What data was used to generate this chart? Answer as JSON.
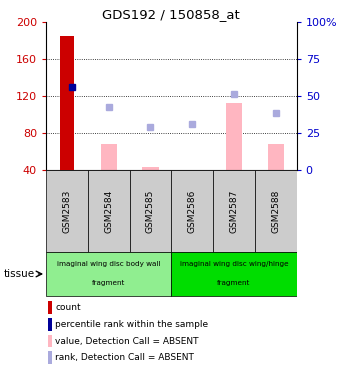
{
  "title": "GDS192 / 150858_at",
  "samples": [
    "GSM2583",
    "GSM2584",
    "GSM2585",
    "GSM2586",
    "GSM2587",
    "GSM2588"
  ],
  "count_values": [
    185,
    null,
    null,
    null,
    null,
    null
  ],
  "percentile_values": [
    130,
    null,
    null,
    null,
    null,
    null
  ],
  "absent_value_bars": [
    null,
    68,
    43,
    40,
    113,
    68
  ],
  "absent_rank_dots": [
    null,
    108,
    87,
    90,
    122,
    102
  ],
  "ylim_left": [
    40,
    200
  ],
  "ylim_right": [
    0,
    100
  ],
  "yticks_left": [
    40,
    80,
    120,
    160,
    200
  ],
  "yticks_right": [
    0,
    25,
    50,
    75,
    100
  ],
  "right_tick_labels": [
    "0",
    "25",
    "50",
    "75",
    "100%"
  ],
  "tissue_groups": [
    {
      "label1": "imaginal wing disc body wall",
      "label2": "fragment",
      "samples": [
        0,
        1,
        2
      ],
      "color": "#90EE90"
    },
    {
      "label1": "imaginal wing disc wing/hinge",
      "label2": "fragment",
      "samples": [
        3,
        4,
        5
      ],
      "color": "#00DD00"
    }
  ],
  "bar_color_count": "#CC0000",
  "bar_color_absent_value": "#FFB6C1",
  "dot_color_percentile": "#000099",
  "dot_color_absent_rank": "#AAAADD",
  "bg_color": "#FFFFFF",
  "grid_color": "#000000",
  "tick_color_left": "#CC0000",
  "tick_color_right": "#0000CC",
  "xtick_bg": "#CCCCCC",
  "legend_items": [
    {
      "color": "#CC0000",
      "label": "count"
    },
    {
      "color": "#000099",
      "label": "percentile rank within the sample"
    },
    {
      "color": "#FFB6C1",
      "label": "value, Detection Call = ABSENT"
    },
    {
      "color": "#AAAADD",
      "label": "rank, Detection Call = ABSENT"
    }
  ]
}
